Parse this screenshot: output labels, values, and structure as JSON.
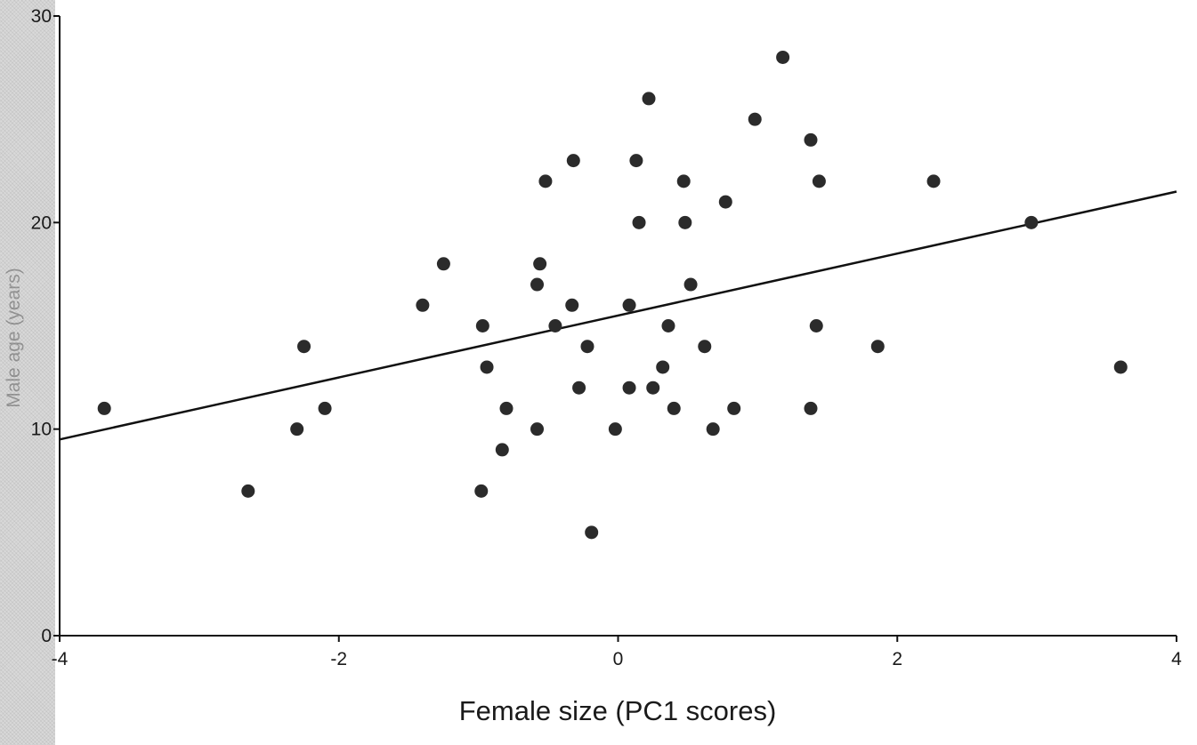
{
  "chart_data": {
    "type": "scatter",
    "title": "",
    "xlabel": "Female size (PC1 scores)",
    "ylabel": "Male age (years)",
    "xlim": [
      -4,
      4
    ],
    "ylim": [
      0,
      30
    ],
    "x_ticks": [
      -4,
      -2,
      0,
      2,
      4
    ],
    "y_ticks": [
      0,
      10,
      20,
      30
    ],
    "x_tick_labels": [
      "-4",
      "-2",
      "0",
      "2",
      "4"
    ],
    "y_tick_labels": [
      "0",
      "10",
      "20",
      "30"
    ],
    "grid": false,
    "legend": "none",
    "point_color": "#2b2b2b",
    "line_color": "#111111",
    "series": [
      {
        "points": [
          [
            -3.68,
            11
          ],
          [
            -2.65,
            7
          ],
          [
            -2.3,
            10
          ],
          [
            -2.25,
            14
          ],
          [
            -2.1,
            11
          ],
          [
            -1.4,
            16
          ],
          [
            -1.25,
            18
          ],
          [
            -0.97,
            15
          ],
          [
            -0.94,
            13
          ],
          [
            -0.98,
            7
          ],
          [
            -0.8,
            11
          ],
          [
            -0.83,
            9
          ],
          [
            -0.58,
            17
          ],
          [
            -0.56,
            18
          ],
          [
            -0.52,
            22
          ],
          [
            -0.58,
            10
          ],
          [
            -0.45,
            15
          ],
          [
            -0.33,
            16
          ],
          [
            -0.32,
            23
          ],
          [
            -0.28,
            12
          ],
          [
            -0.22,
            14
          ],
          [
            -0.19,
            5
          ],
          [
            -0.02,
            10
          ],
          [
            0.08,
            16
          ],
          [
            0.08,
            12
          ],
          [
            0.13,
            23
          ],
          [
            0.15,
            20
          ],
          [
            0.22,
            26
          ],
          [
            0.25,
            12
          ],
          [
            0.32,
            13
          ],
          [
            0.36,
            15
          ],
          [
            0.4,
            11
          ],
          [
            0.47,
            22
          ],
          [
            0.48,
            20
          ],
          [
            0.52,
            17
          ],
          [
            0.62,
            14
          ],
          [
            0.68,
            10
          ],
          [
            0.77,
            21
          ],
          [
            0.83,
            11
          ],
          [
            0.98,
            25
          ],
          [
            1.18,
            28
          ],
          [
            1.38,
            24
          ],
          [
            1.38,
            11
          ],
          [
            1.42,
            15
          ],
          [
            1.44,
            22
          ],
          [
            1.86,
            14
          ],
          [
            2.26,
            22
          ],
          [
            2.96,
            20
          ],
          [
            3.6,
            13
          ]
        ]
      }
    ],
    "regression_line": {
      "x": [
        -4,
        4
      ],
      "y": [
        9.5,
        21.5
      ]
    }
  }
}
